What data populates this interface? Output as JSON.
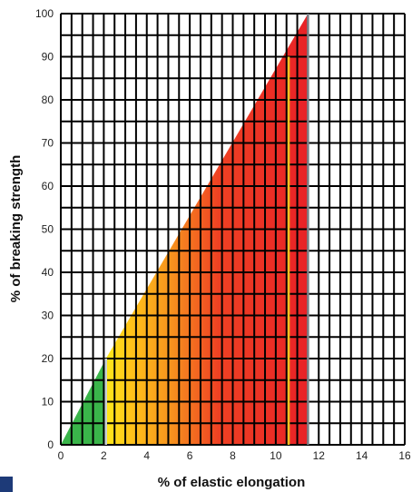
{
  "chart_data": {
    "type": "area",
    "xlabel": "% of elastic elongation",
    "ylabel": "% of breaking strength",
    "xlim": [
      0,
      16
    ],
    "ylim": [
      0,
      100
    ],
    "x_ticks": [
      0,
      2,
      4,
      6,
      8,
      10,
      12,
      14,
      16
    ],
    "y_ticks": [
      0,
      10,
      20,
      30,
      40,
      50,
      60,
      70,
      80,
      90,
      100
    ],
    "grid": true,
    "x": [
      0,
      2.1,
      11.5
    ],
    "y": [
      0,
      20,
      100
    ],
    "markers": [
      {
        "type": "vertical-line",
        "x": 2.1,
        "y_top": 20,
        "color": "#c8d0d8"
      },
      {
        "type": "vertical-line",
        "x": 10.6,
        "y_top": 90,
        "color": "#f0c020"
      },
      {
        "type": "vertical-line",
        "x": 11.5,
        "y_top": 100,
        "color": "#7a8088"
      }
    ],
    "fill_colors": {
      "safe_zone": "#3ab54a",
      "gradient": [
        "#ffe81a",
        "#ffc31a",
        "#f7921e",
        "#ef4123",
        "#e82127"
      ]
    }
  }
}
